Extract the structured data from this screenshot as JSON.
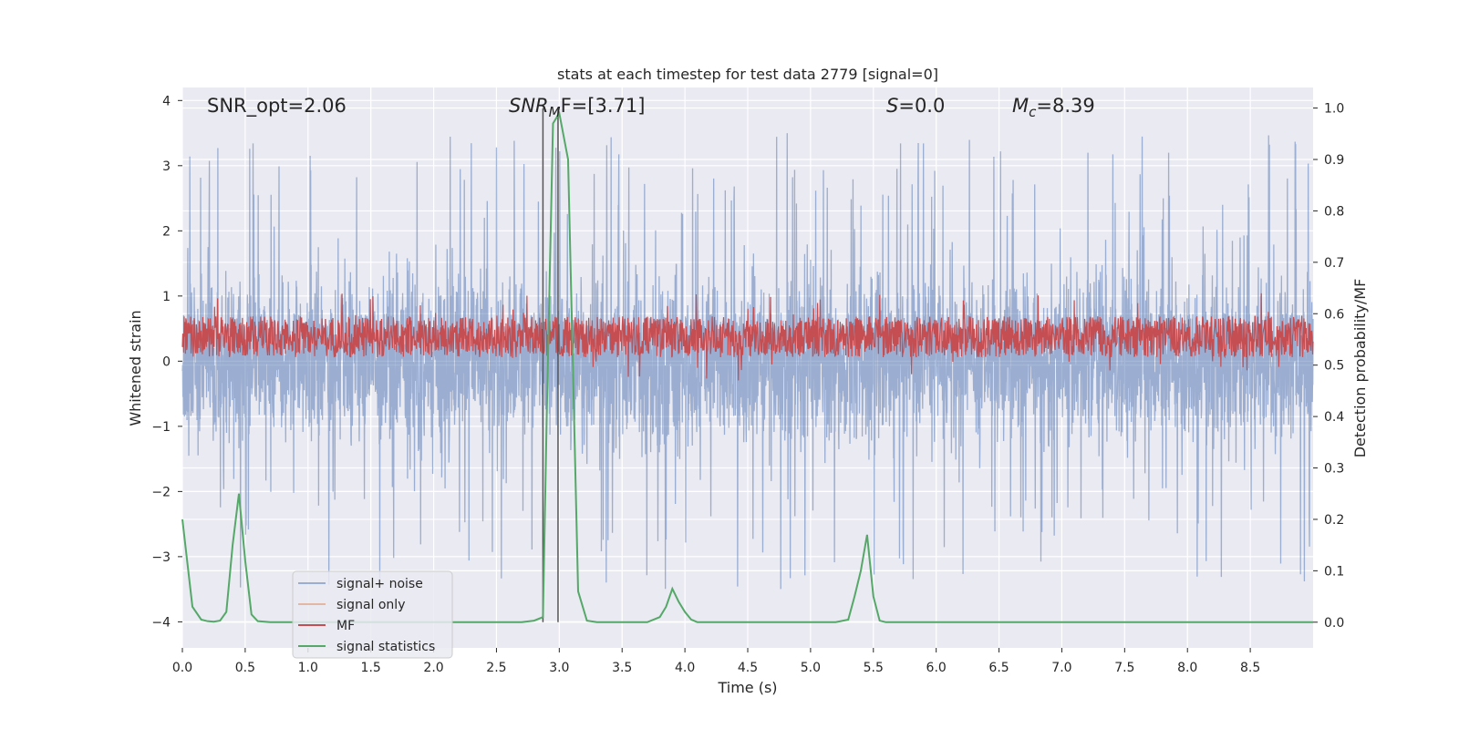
{
  "title": "stats at each timestep for test data 2779 [signal=0]",
  "xlabel": "Time (s)",
  "ylabel_left": "Whitened strain",
  "ylabel_right": "Detection probability/MF",
  "annotations": {
    "snr_opt": "SNR_opt=2.06",
    "snr_mf_main": "SNR",
    "snr_mf_sub": "M",
    "snr_mf_rest": "F=[3.71]",
    "s_italic": "S",
    "s_value": "=0.0",
    "mc_main": "M",
    "mc_sub": "c",
    "mc_value": "=8.39"
  },
  "legend": {
    "location": "lower-left",
    "entries": [
      {
        "label": "signal+ noise",
        "color": "#4c72b0",
        "alpha": 0.5
      },
      {
        "label": "signal only",
        "color": "#dd8452",
        "alpha": 0.5
      },
      {
        "label": "MF",
        "color": "#c44e52",
        "alpha": 1
      },
      {
        "label": "signal statistics",
        "color": "#55a868",
        "alpha": 1
      }
    ]
  },
  "colors": {
    "axes_bg": "#eaeaf2",
    "grid": "#ffffff",
    "noise": "#4c72b0",
    "mf": "#c44e52",
    "stats": "#55a868",
    "vline": "#555555"
  },
  "chart_data": {
    "type": "line",
    "title": "stats at each timestep for test data 2779 [signal=0]",
    "xlabel": "Time (s)",
    "ylabel": "Whitened strain",
    "ylabel_right": "Detection probability/MF",
    "xlim": [
      0.0,
      9.0
    ],
    "ylim": [
      -4.4,
      4.2
    ],
    "ylim_right": [
      -0.05,
      1.04
    ],
    "xticks": [
      0.0,
      0.5,
      1.0,
      1.5,
      2.0,
      2.5,
      3.0,
      3.5,
      4.0,
      4.5,
      5.0,
      5.5,
      6.0,
      6.5,
      7.0,
      7.5,
      8.0,
      8.5
    ],
    "yticks_left": [
      -4,
      -3,
      -2,
      -1,
      0,
      1,
      2,
      3,
      4
    ],
    "yticks_right": [
      0.0,
      0.1,
      0.2,
      0.3,
      0.4,
      0.5,
      0.6,
      0.7,
      0.8,
      0.9,
      1.0
    ],
    "grid": true,
    "vertical_lines": [
      2.87,
      2.99
    ],
    "series": [
      {
        "name": "signal+ noise",
        "axis": "left",
        "description_values": "whitened noise, approx. uniform band",
        "band": {
          "core_min": -1.6,
          "core_max": 1.5,
          "spike_min": -4.2,
          "spike_max": 3.85,
          "seed": 2779
        }
      },
      {
        "name": "signal only",
        "axis": "left",
        "x": [
          0.0,
          9.0
        ],
        "y": [
          0.0,
          0.0
        ]
      },
      {
        "name": "MF",
        "axis": "right",
        "description_values": "matched filter output around 0.55",
        "band": {
          "center": 0.555,
          "half_width": 0.04,
          "spike": 0.085,
          "seed": 42
        }
      },
      {
        "name": "signal statistics",
        "axis": "right",
        "x": [
          0.0,
          0.08,
          0.15,
          0.2,
          0.25,
          0.3,
          0.35,
          0.4,
          0.45,
          0.5,
          0.55,
          0.6,
          0.7,
          0.8,
          1.0,
          1.5,
          2.0,
          2.5,
          2.7,
          2.8,
          2.87,
          2.9,
          2.95,
          3.0,
          3.07,
          3.15,
          3.22,
          3.3,
          3.5,
          3.7,
          3.8,
          3.85,
          3.9,
          3.95,
          4.0,
          4.05,
          4.1,
          4.2,
          4.5,
          5.0,
          5.2,
          5.3,
          5.35,
          5.4,
          5.45,
          5.5,
          5.55,
          5.6,
          6.0,
          7.0,
          8.0,
          9.0
        ],
        "y": [
          0.2,
          0.03,
          0.005,
          0.002,
          0.001,
          0.003,
          0.02,
          0.15,
          0.25,
          0.12,
          0.015,
          0.002,
          0.0,
          0.0,
          0.0,
          0.0,
          0.0,
          0.0,
          0.0,
          0.003,
          0.01,
          0.4,
          0.97,
          0.99,
          0.9,
          0.06,
          0.003,
          0.0,
          0.0,
          0.0,
          0.01,
          0.03,
          0.065,
          0.04,
          0.02,
          0.005,
          0.0,
          0.0,
          0.0,
          0.0,
          0.0,
          0.005,
          0.05,
          0.1,
          0.17,
          0.05,
          0.003,
          0.0,
          0.0,
          0.0,
          0.0,
          0.0
        ]
      }
    ]
  }
}
